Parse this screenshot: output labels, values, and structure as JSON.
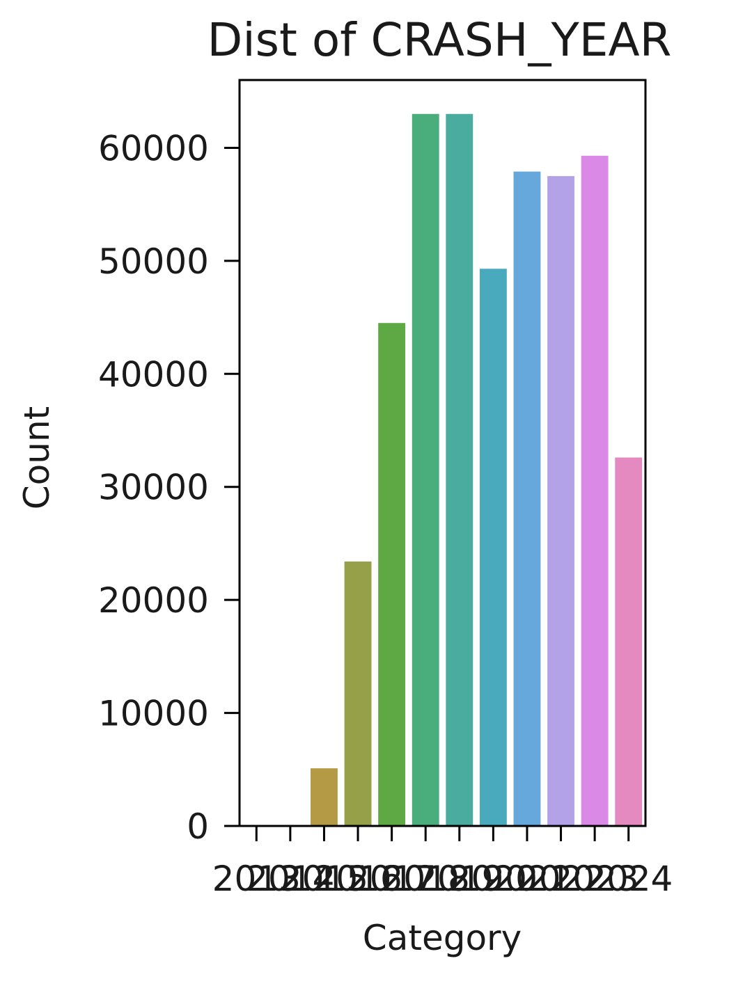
{
  "chart_data": {
    "type": "bar",
    "title": "Dist of CRASH_YEAR",
    "xlabel": "Category",
    "ylabel": "Count",
    "ylim": [
      0,
      66000
    ],
    "yticks": [
      0,
      10000,
      20000,
      30000,
      40000,
      50000,
      60000
    ],
    "ytick_labels": [
      "0",
      "10000",
      "20000",
      "30000",
      "40000",
      "50000",
      "60000"
    ],
    "categories": [
      "2013",
      "2014",
      "2015",
      "2016",
      "2017",
      "2018",
      "2019",
      "2020",
      "2021",
      "2022",
      "2023",
      "2024"
    ],
    "values": [
      10,
      30,
      5100,
      23400,
      44500,
      63000,
      63000,
      49300,
      57900,
      57500,
      59300,
      32600
    ],
    "colors": [
      "#e1837f",
      "#cf9645",
      "#b49a45",
      "#95a048",
      "#5ea944",
      "#4aad7c",
      "#4aab9f",
      "#49a9bd",
      "#66a8dc",
      "#b4a2e8",
      "#da8ae6",
      "#e48ac0"
    ],
    "grid": false,
    "legend": "none"
  }
}
